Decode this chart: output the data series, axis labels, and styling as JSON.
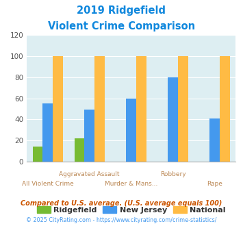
{
  "title_line1": "2019 Ridgefield",
  "title_line2": "Violent Crime Comparison",
  "categories": [
    "All Violent Crime",
    "Aggravated Assault",
    "Murder & Mans...",
    "Robbery",
    "Rape"
  ],
  "ridgefield": [
    14,
    22,
    null,
    null,
    null
  ],
  "new_jersey": [
    55,
    49,
    60,
    80,
    41
  ],
  "national": [
    100,
    100,
    100,
    100,
    100
  ],
  "ylim": [
    0,
    120
  ],
  "yticks": [
    0,
    20,
    40,
    60,
    80,
    100,
    120
  ],
  "color_ridgefield": "#77bb33",
  "color_nj": "#4499ee",
  "color_national": "#ffbb44",
  "title_color": "#1188dd",
  "bg_color": "#ddeef2",
  "legend_labels": [
    "Ridgefield",
    "New Jersey",
    "National"
  ],
  "legend_text_color": "#333333",
  "row1_labels": [
    [
      1,
      "Aggravated Assault"
    ],
    [
      3,
      "Robbery"
    ]
  ],
  "row2_labels": [
    [
      0,
      "All Violent Crime"
    ],
    [
      2,
      "Murder & Mans..."
    ],
    [
      4,
      "Rape"
    ]
  ],
  "label_color": "#bb8855",
  "label_fontsize": 6.5,
  "footnote1": "Compared to U.S. average. (U.S. average equals 100)",
  "footnote2": "© 2025 CityRating.com - https://www.cityrating.com/crime-statistics/",
  "footnote1_color": "#cc5500",
  "footnote2_color": "#4499ee"
}
